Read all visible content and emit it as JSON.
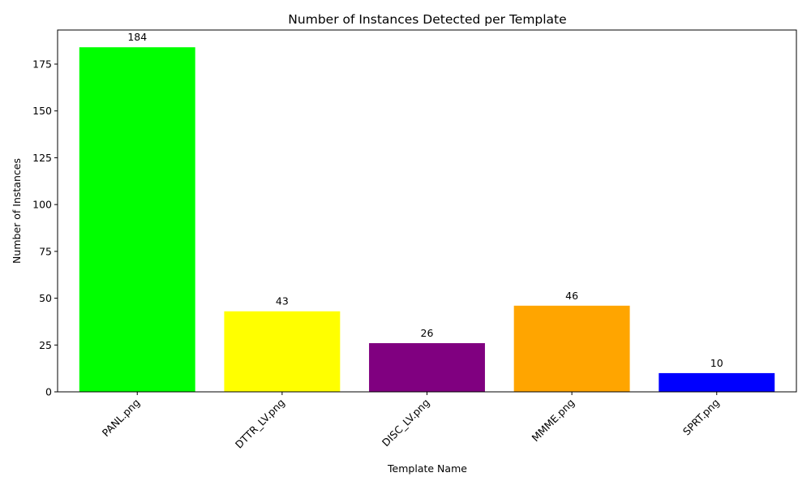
{
  "chart_data": {
    "type": "bar",
    "title": "Number of Instances Detected per Template",
    "xlabel": "Template Name",
    "ylabel": "Number of Instances",
    "categories": [
      "PANL.png",
      "DTTR_LV.png",
      "DISC_LV.png",
      "MMME.png",
      "SPRT.png"
    ],
    "values": [
      184,
      43,
      26,
      46,
      10
    ],
    "data_labels": [
      "184",
      "43",
      "26",
      "46",
      "10"
    ],
    "colors": [
      "#00ff00",
      "#ffff00",
      "#800080",
      "#ffa500",
      "#0000ff"
    ],
    "ylim": [
      0,
      193.2
    ],
    "yticks": [
      0,
      25,
      50,
      75,
      100,
      125,
      150,
      175
    ],
    "ytick_labels": [
      "0",
      "25",
      "50",
      "75",
      "100",
      "125",
      "150",
      "175"
    ],
    "grid": false,
    "legend": "none",
    "x_tick_rotation": "45 degrees"
  }
}
